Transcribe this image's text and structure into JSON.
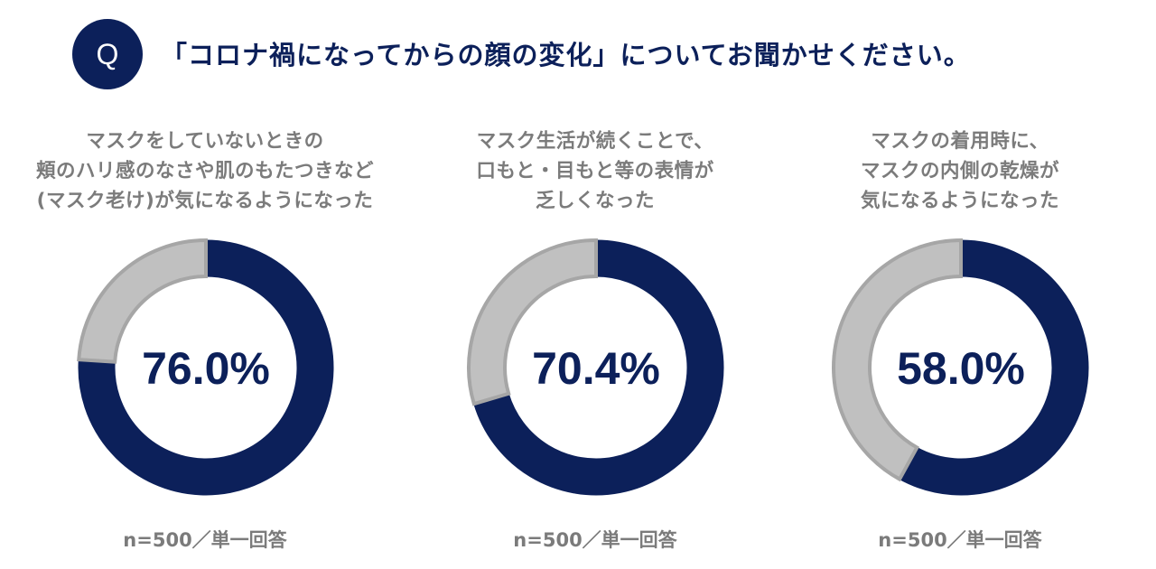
{
  "header": {
    "badge": "Q",
    "question": "「コロナ禍になってからの顔の変化」についてお聞かせください。"
  },
  "colors": {
    "accent": "#0c205a",
    "remainder": "#c0c0c0",
    "outline": "#a6a6a6",
    "caption": "#7b7b7b"
  },
  "chart_data": [
    {
      "type": "pie",
      "title_lines": [
        "マスクをしていないときの",
        "頬のハリ感のなさや肌のもたつきなど",
        "(マスク老け)が気になるようになった"
      ],
      "value": 76.0,
      "label": "76.0%",
      "note": "n=500／単一回答"
    },
    {
      "type": "pie",
      "title_lines": [
        "マスク生活が続くことで、",
        "口もと・目もと等の表情が",
        "乏しくなった"
      ],
      "value": 70.4,
      "label": "70.4%",
      "note": "n=500／単一回答"
    },
    {
      "type": "pie",
      "title_lines": [
        "マスクの着用時に、",
        "マスクの内側の乾燥が",
        "気になるようになった"
      ],
      "value": 58.0,
      "label": "58.0%",
      "note": "n=500／単一回答"
    }
  ]
}
